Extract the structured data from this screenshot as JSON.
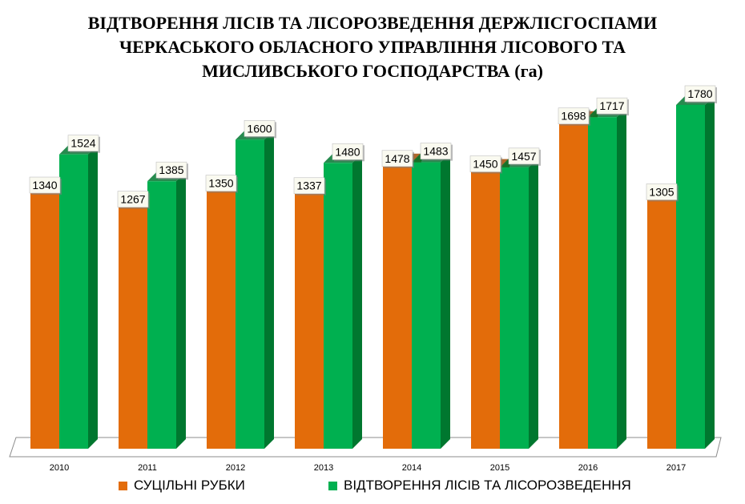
{
  "title_lines": [
    "ВІДТВОРЕННЯ ЛІСІВ ТА ЛІСОРОЗВЕДЕННЯ ДЕРЖЛІСГОСПАМИ",
    "ЧЕРКАСЬКОГО ОБЛАСНОГО УПРАВЛІННЯ ЛІСОВОГО ТА",
    "МИСЛИВСЬКОГО ГОСПОДАРСТВА (га)"
  ],
  "chart_data": {
    "type": "bar",
    "title": "ВІДТВОРЕННЯ ЛІСІВ ТА ЛІСОРОЗВЕДЕННЯ ДЕРЖЛІСГОСПАМИ ЧЕРКАСЬКОГО ОБЛАСНОГО УПРАВЛІННЯ ЛІСОВОГО ТА МИСЛИВСЬКОГО ГОСПОДАРСТВА (га)",
    "categories": [
      "2010",
      "2011",
      "2012",
      "2013",
      "2014",
      "2015",
      "2016",
      "2017"
    ],
    "series": [
      {
        "name": "СУЦІЛЬНІ РУБКИ",
        "color": "#e36c0a",
        "side_color": "#a24d06",
        "values": [
          1340,
          1267,
          1350,
          1337,
          1478,
          1450,
          1698,
          1305
        ]
      },
      {
        "name": "ВІДТВОРЕННЯ ЛІСІВ ТА ЛІСОРОЗВЕДЕННЯ",
        "color": "#00b050",
        "side_color": "#00772f",
        "values": [
          1524,
          1385,
          1600,
          1480,
          1483,
          1457,
          1717,
          1780
        ]
      }
    ],
    "ylim": [
      0,
      1950
    ],
    "grid": false,
    "legend_position": "bottom",
    "data_labels": true
  }
}
